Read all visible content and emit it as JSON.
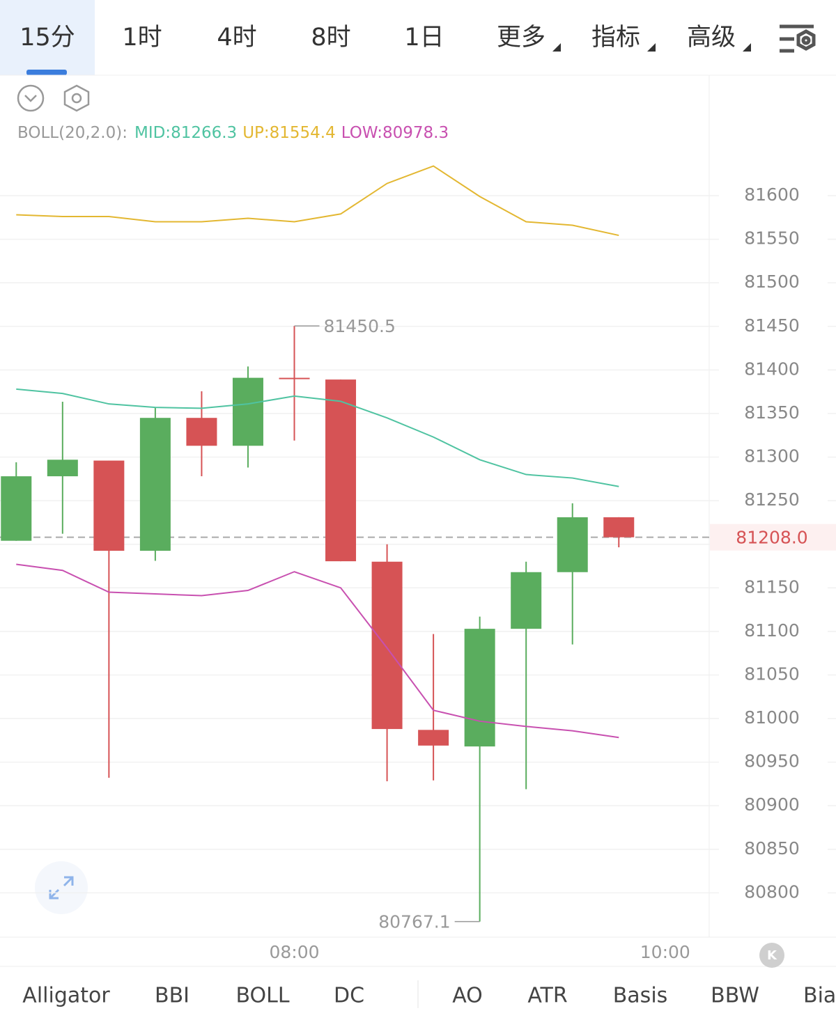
{
  "tabs": [
    "15分",
    "1时",
    "4时",
    "8时",
    "1日",
    "更多",
    "指标",
    "高级"
  ],
  "indicator_tabs": [
    "Alligator",
    "BBI",
    "BOLL",
    "DC",
    "AO",
    "ATR",
    "Basis",
    "BBW",
    "Bias"
  ],
  "chart_data": {
    "type": "candlestick",
    "indicator": "BOLL(20,2.0):",
    "up_color": "#5aad5e",
    "down_color": "#d65355",
    "open": [
      81204,
      81278,
      81296,
      81192.5,
      81345,
      81313,
      81391,
      81389,
      81180,
      80987,
      80968,
      81103,
      81168,
      81231
    ],
    "high": [
      81294,
      81363.5,
      81296,
      81357,
      81375.5,
      81404,
      81450.5,
      81389,
      81200,
      81097,
      81117,
      81180,
      81247,
      81231
    ],
    "low": [
      81204,
      81212,
      80932,
      81181,
      81278,
      81288,
      81319,
      81180.5,
      80928,
      80929,
      80767.1,
      80919,
      81085,
      81196.5
    ],
    "close": [
      81278,
      81297,
      81192.5,
      81345,
      81313,
      81391,
      81390,
      81180.5,
      80988,
      80969,
      81103,
      81168,
      81231,
      81208
    ],
    "series": [
      {
        "name": "MID:",
        "color": "#4fc3a1",
        "values": [
          81378,
          81373,
          81361,
          81357,
          81356,
          81361,
          81370,
          81364,
          81345,
          81323,
          81297,
          81280,
          81276,
          81266.3
        ]
      },
      {
        "name": "UP:",
        "color": "#e3b731",
        "values": [
          81578,
          81576,
          81576,
          81570,
          81570,
          81574,
          81570,
          81579,
          81614,
          81634,
          81599,
          81570,
          81566,
          81554.4
        ]
      },
      {
        "name": "LOW:",
        "color": "#c850b0",
        "values": [
          81177,
          81170,
          81145,
          81143,
          81141,
          81147,
          81168.5,
          81150,
          81081,
          81009.5,
          80997,
          80991,
          80986,
          80978.3
        ]
      }
    ],
    "last_price": {
      "value": 81208,
      "label": "81208.0"
    },
    "ylim": [
      80750,
      81650
    ],
    "yticks": [
      80800,
      80850,
      80900,
      80950,
      81000,
      81050,
      81100,
      81150,
      81200,
      81250,
      81300,
      81350,
      81400,
      81450,
      81500,
      81550,
      81600
    ],
    "xlim": [
      -0.35,
      14.95
    ],
    "xticks": [
      {
        "value": 6,
        "label": "08:00"
      },
      {
        "value": 14,
        "label": "10:00"
      }
    ],
    "grid": true
  }
}
